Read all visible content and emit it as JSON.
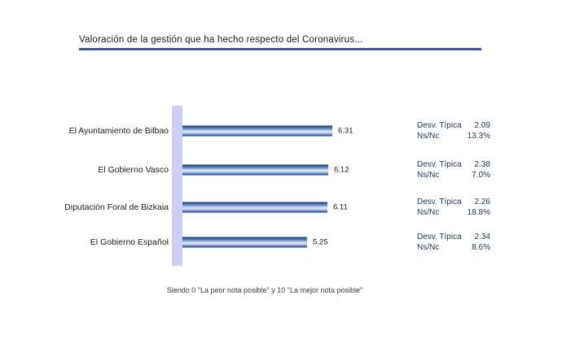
{
  "title": "Valoración de la gestión que ha hecho respecto del Coronavirus...",
  "footnote": "Siendo 0 \"La peor nota posible\" y 10 \"La mejor nota posible\"",
  "stats": {
    "std_dev_label": "Desv. Típica",
    "ns_nc_label": "Ns/Nc"
  },
  "colors": {
    "background": "#ffffff",
    "title_underline": "#2d5ca8",
    "axis_band": "#cdcdf7",
    "bar_dark": "#16335f",
    "bar_light": "#dde4f3"
  },
  "chart_data": {
    "type": "bar",
    "orientation": "horizontal",
    "title": "Valoración de la gestión que ha hecho respecto del Coronavirus...",
    "categories": [
      "El Ayuntamiento de Bilbao",
      "El Gobierno Vasco",
      "Diputación Foral de Bizkaia",
      "El Gobierno Español"
    ],
    "values": [
      6.31,
      6.12,
      6.11,
      5.25
    ],
    "value_labels": [
      "6.31",
      "6.12",
      "6.11",
      "5.25"
    ],
    "std_dev": [
      "2.09",
      "2.38",
      "2.26",
      "2.34"
    ],
    "ns_nc": [
      "13.3%",
      "7.0%",
      "18.8%",
      "8.6%"
    ],
    "xlim": [
      0,
      10
    ],
    "grid": false,
    "legend": false,
    "annotation_columns": [
      "Desv. Típica",
      "Ns/Nc"
    ],
    "scale_note": "Siendo 0 \"La peor nota posible\" y 10 \"La mejor nota posible\""
  }
}
